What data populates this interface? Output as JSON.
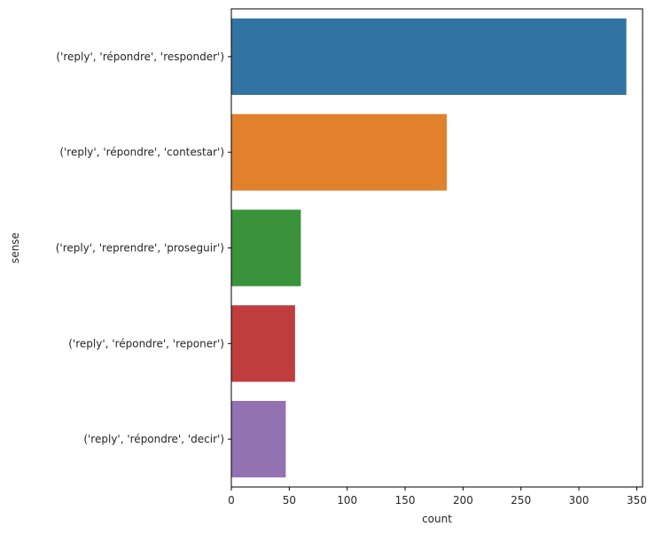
{
  "chart_data": {
    "type": "bar",
    "orientation": "horizontal",
    "categories": [
      "('reply', 'répondre', 'responder')",
      "('reply', 'répondre', 'contestar')",
      "('reply', 'reprendre', 'proseguir')",
      "('reply', 'répondre', 'reponer')",
      "('reply', 'répondre', 'decir')"
    ],
    "values": [
      341,
      186,
      60,
      55,
      47
    ],
    "colors": [
      "#3274a1",
      "#e1812c",
      "#3a923a",
      "#c03d3e",
      "#9372b2"
    ],
    "xlabel": "count",
    "ylabel": "sense",
    "xlim": [
      0,
      355
    ],
    "xticks": [
      0,
      50,
      100,
      150,
      200,
      250,
      300,
      350
    ],
    "grid": false,
    "legend": "none"
  }
}
